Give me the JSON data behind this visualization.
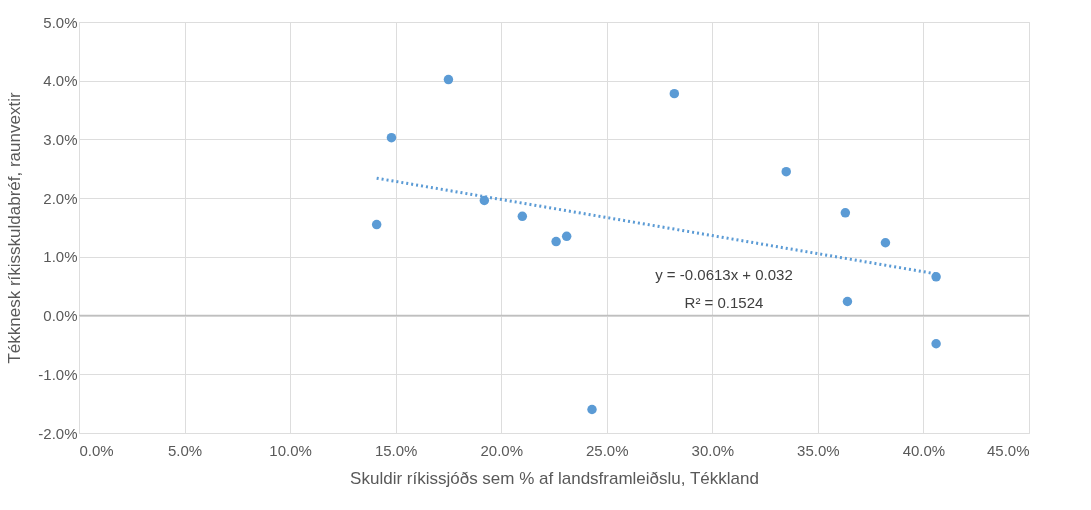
{
  "chart_data": {
    "type": "scatter",
    "xlabel": "Skuldir ríkissjóðs sem % af landsframleiðslu, Tékkland",
    "ylabel": "Tékknesk ríkisskuldabréf, raunvextir",
    "series": [
      {
        "marker": "circle",
        "color": "#5b9bd5",
        "x": [
          14.8,
          17.5,
          14.1,
          19.2,
          21.0,
          22.6,
          23.1,
          24.3,
          28.2,
          33.5,
          36.3,
          36.4,
          38.2,
          40.6,
          40.6
        ],
        "values": [
          3.03,
          4.02,
          1.55,
          1.96,
          1.69,
          1.26,
          1.35,
          -1.6,
          3.78,
          2.45,
          1.75,
          0.24,
          1.24,
          0.66,
          -0.48
        ]
      },
      {
        "type": "line",
        "color": "#5b9bd5",
        "line_style": "dotted",
        "x": [
          14.1,
          40.6
        ],
        "values": [
          2.34,
          0.71
        ]
      }
    ],
    "annotations": [
      "y = -0.0613x  + 0.032",
      "R² = 0.1524"
    ],
    "xlim": [
      0,
      45
    ],
    "ylim": [
      -2,
      5
    ],
    "xticks": [
      {
        "value": 0,
        "label": "0.0%"
      },
      {
        "value": 5,
        "label": "5.0%"
      },
      {
        "value": 10,
        "label": "10.0%"
      },
      {
        "value": 15,
        "label": "15.0%"
      },
      {
        "value": 20,
        "label": "20.0%"
      },
      {
        "value": 25,
        "label": "25.0%"
      },
      {
        "value": 30,
        "label": "30.0%"
      },
      {
        "value": 35,
        "label": "35.0%"
      },
      {
        "value": 40,
        "label": "40.0%"
      },
      {
        "value": 45,
        "label": "45.0%"
      }
    ],
    "yticks": [
      {
        "value": -2,
        "label": "-2.0%"
      },
      {
        "value": -1,
        "label": "-1.0%"
      },
      {
        "value": 0,
        "label": "0.0%"
      },
      {
        "value": 1,
        "label": "1.0%"
      },
      {
        "value": 2,
        "label": "2.0%"
      },
      {
        "value": 3,
        "label": "3.0%"
      },
      {
        "value": 4,
        "label": "4.0%"
      },
      {
        "value": 5,
        "label": "5.0%"
      }
    ],
    "grid": true
  }
}
